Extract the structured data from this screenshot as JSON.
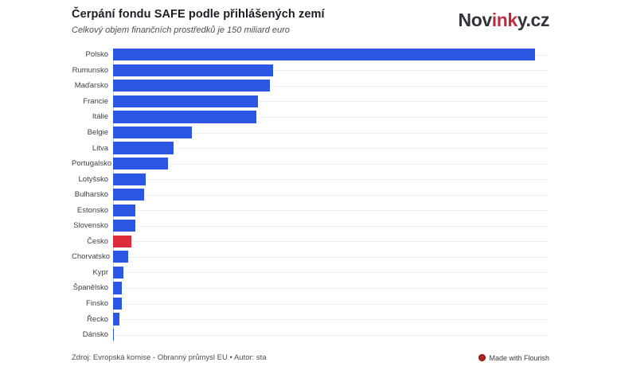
{
  "header": {
    "title": "Čerpání fondu SAFE podle přihlášených zemí",
    "subtitle": "Celkový objem finančních prostředků je 150 miliard euro",
    "logo": {
      "part1": "Nov",
      "part2": "ink",
      "part3": "y.cz"
    }
  },
  "colors": {
    "bar_blue": "#2b57e4",
    "highlight_red": "#dc2c39",
    "logo_dark": "#33333b",
    "logo_red": "#c22b3e"
  },
  "chart_data": {
    "type": "bar",
    "orientation": "horizontal",
    "title": "Čerpání fondu SAFE podle přihlášených zemí",
    "subtitle": "Celkový objem finančních prostředků je 150 miliard euro",
    "unit": "miliard euro",
    "categories": [
      "Polsko",
      "Rumunsko",
      "Maďarsko",
      "Francie",
      "Itálie",
      "Belgie",
      "Litva",
      "Portugalsko",
      "Lotyšsko",
      "Bulharsko",
      "Estonsko",
      "Slovensko",
      "Česko",
      "Chorvatsko",
      "Kypr",
      "Španělsko",
      "Finsko",
      "Řecko",
      "Dánsko"
    ],
    "values": [
      43.7,
      16.6,
      16.2,
      15.0,
      14.8,
      8.2,
      6.3,
      5.7,
      3.4,
      3.2,
      2.3,
      2.3,
      1.9,
      1.6,
      1.1,
      0.9,
      0.9,
      0.7,
      0.05
    ],
    "xlim": [
      0,
      45
    ],
    "highlight_category": "Česko",
    "grid": "light horizontal line per category row",
    "legend_position": "none",
    "value_labels": false
  },
  "footer": {
    "source": "Zdroj: Evropská komise - Obranný průmysl EU • Autor: sta",
    "attribution": "Made with Flourish"
  }
}
